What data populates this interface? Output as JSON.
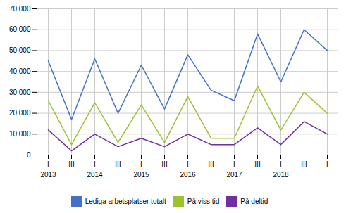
{
  "chart_data": {
    "type": "line",
    "categories": [
      "I",
      "III",
      "I",
      "III",
      "I",
      "III",
      "I",
      "III",
      "I",
      "III",
      "I",
      "III",
      "I"
    ],
    "series": [
      {
        "name": "Lediga arbetsplatser totalt",
        "color": "#4472C4",
        "values": [
          45000,
          17000,
          46000,
          20000,
          43000,
          22000,
          48000,
          31000,
          26000,
          58000,
          35000,
          60000,
          50000
        ]
      },
      {
        "name": "På viss tid",
        "color": "#9DC22F",
        "values": [
          26000,
          5000,
          25000,
          6000,
          24000,
          6000,
          28000,
          8000,
          8000,
          33000,
          12000,
          30000,
          20000
        ]
      },
      {
        "name": "På deltid",
        "color": "#7030A0",
        "values": [
          12000,
          2000,
          10000,
          4000,
          8000,
          4000,
          10000,
          5000,
          5000,
          13000,
          5000,
          16000,
          10000
        ]
      }
    ],
    "annotations": [
      {
        "text": "2013",
        "x": 0
      },
      {
        "text": "2014",
        "x": 2
      },
      {
        "text": "2015",
        "x": 4
      },
      {
        "text": "2016",
        "x": 6
      },
      {
        "text": "2017",
        "x": 8
      },
      {
        "text": "2018",
        "x": 10
      }
    ],
    "ylim": [
      0,
      70000
    ],
    "yticks": [
      0,
      {
        "value": 10000,
        "label": "10 000"
      },
      {
        "value": 20000,
        "label": "20 000"
      },
      {
        "value": 30000,
        "label": "30 000"
      },
      {
        "value": 40000,
        "label": "40 000"
      },
      {
        "value": 50000,
        "label": "50 000"
      },
      {
        "value": 60000,
        "label": "60 000"
      },
      {
        "value": 70000,
        "label": "70 000"
      }
    ],
    "grid": true,
    "legend": "bottom"
  }
}
